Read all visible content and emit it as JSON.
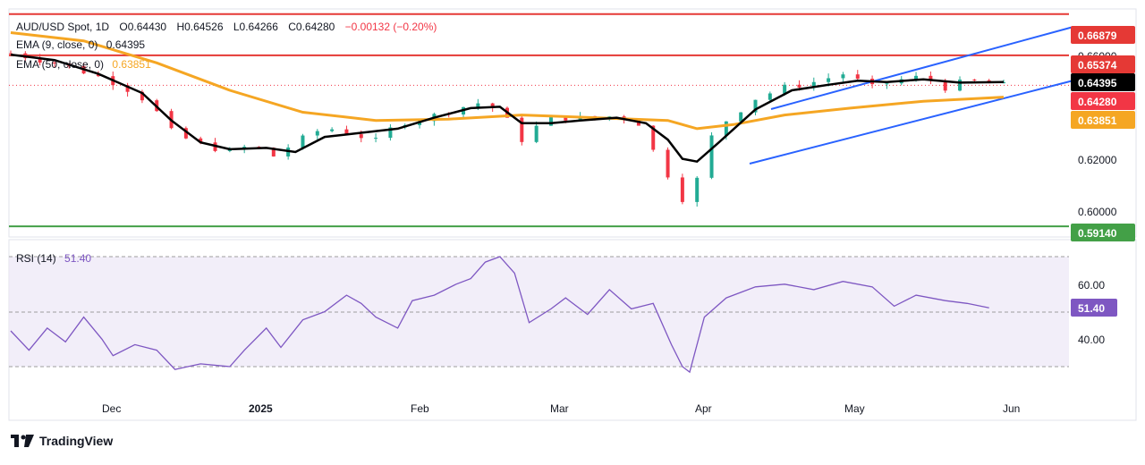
{
  "header": {
    "symbol": "AUD/USD Spot, 1D",
    "open": "O0.64430",
    "high": "H0.64526",
    "low": "L0.64266",
    "close": "C0.64280",
    "change": "−0.00132 (−0.20%)"
  },
  "indicators": {
    "ema9_label": "EMA (9, close, 0)",
    "ema9_value": "0.64395",
    "ema50_label": "EMA (50, close, 0)",
    "ema50_value": "0.63851",
    "rsi_label": "RSI (14)",
    "rsi_value": "51.40"
  },
  "price_tags": {
    "r1": "0.66879",
    "r2": "0.65374",
    "ema9": "0.64395",
    "last": "0.64280",
    "ema50": "0.63851",
    "support": "0.59140"
  },
  "price_ticks": [
    "0.66000",
    "0.62000",
    "0.60000"
  ],
  "rsi_ticks": [
    "60.00",
    "40.00"
  ],
  "rsi_tag": "51.40",
  "x_ticks": [
    "Dec",
    "2025",
    "Feb",
    "Mar",
    "Apr",
    "May",
    "Jun"
  ],
  "branding": "TradingView",
  "colors": {
    "up": "#22ab94",
    "down": "#f23645",
    "ema9": "#000000",
    "ema50": "#f5a623",
    "resistance": "#e53935",
    "support": "#43a047",
    "channel": "#2962ff",
    "rsi": "#7e57c2"
  },
  "chart_data": {
    "type": "candlestick",
    "title": "AUD/USD Spot, 1D",
    "ylim": [
      0.5885,
      0.67
    ],
    "horizontal_levels": [
      0.66879,
      0.65374,
      0.5914
    ],
    "last_price": 0.6428,
    "x_labels": [
      "Dec",
      "2025",
      "Feb",
      "Mar",
      "Apr",
      "May",
      "Jun"
    ],
    "series": [
      {
        "name": "EMA (9, close, 0)",
        "last": 0.64395
      },
      {
        "name": "EMA (50, close, 0)",
        "last": 0.63851
      },
      {
        "name": "RSI (14)",
        "last": 51.4
      }
    ],
    "close_path": [
      [
        0,
        0.6545
      ],
      [
        12,
        0.651
      ],
      [
        22,
        0.647
      ],
      [
        30,
        0.643
      ],
      [
        38,
        0.6365
      ],
      [
        44,
        0.626
      ],
      [
        50,
        0.622
      ],
      [
        60,
        0.6185
      ],
      [
        66,
        0.621
      ],
      [
        72,
        0.617
      ],
      [
        78,
        0.622
      ],
      [
        86,
        0.6275
      ],
      [
        94,
        0.625
      ],
      [
        100,
        0.6225
      ],
      [
        106,
        0.629
      ],
      [
        114,
        0.631
      ],
      [
        124,
        0.635
      ],
      [
        130,
        0.637
      ],
      [
        136,
        0.63
      ],
      [
        140,
        0.623
      ],
      [
        146,
        0.63
      ],
      [
        152,
        0.631
      ],
      [
        160,
        0.6305
      ],
      [
        166,
        0.632
      ],
      [
        172,
        0.629
      ],
      [
        176,
        0.619
      ],
      [
        181,
        0.608
      ],
      [
        184,
        0.6015
      ],
      [
        186,
        0.596
      ],
      [
        190,
        0.621
      ],
      [
        196,
        0.63
      ],
      [
        204,
        0.638
      ],
      [
        212,
        0.642
      ],
      [
        220,
        0.644
      ],
      [
        228,
        0.647
      ],
      [
        236,
        0.642
      ],
      [
        242,
        0.6445
      ],
      [
        250,
        0.646
      ],
      [
        256,
        0.642
      ],
      [
        262,
        0.6445
      ],
      [
        268,
        0.6435
      ],
      [
        272,
        0.6428
      ]
    ],
    "ema9_path": [
      [
        0,
        0.654
      ],
      [
        12,
        0.652
      ],
      [
        24,
        0.647
      ],
      [
        36,
        0.64
      ],
      [
        44,
        0.63
      ],
      [
        52,
        0.622
      ],
      [
        60,
        0.6195
      ],
      [
        70,
        0.62
      ],
      [
        78,
        0.6185
      ],
      [
        86,
        0.624
      ],
      [
        96,
        0.6255
      ],
      [
        106,
        0.627
      ],
      [
        116,
        0.631
      ],
      [
        126,
        0.6345
      ],
      [
        134,
        0.635
      ],
      [
        140,
        0.629
      ],
      [
        148,
        0.629
      ],
      [
        156,
        0.63
      ],
      [
        166,
        0.631
      ],
      [
        174,
        0.629
      ],
      [
        180,
        0.623
      ],
      [
        184,
        0.616
      ],
      [
        188,
        0.615
      ],
      [
        194,
        0.622
      ],
      [
        204,
        0.634
      ],
      [
        214,
        0.641
      ],
      [
        224,
        0.643
      ],
      [
        232,
        0.6445
      ],
      [
        240,
        0.644
      ],
      [
        250,
        0.645
      ],
      [
        260,
        0.6438
      ],
      [
        272,
        0.644
      ]
    ],
    "ema50_path": [
      [
        0,
        0.662
      ],
      [
        20,
        0.659
      ],
      [
        40,
        0.651
      ],
      [
        60,
        0.641
      ],
      [
        80,
        0.633
      ],
      [
        100,
        0.63
      ],
      [
        120,
        0.6305
      ],
      [
        140,
        0.632
      ],
      [
        160,
        0.631
      ],
      [
        180,
        0.63
      ],
      [
        188,
        0.627
      ],
      [
        198,
        0.6285
      ],
      [
        212,
        0.632
      ],
      [
        230,
        0.6345
      ],
      [
        250,
        0.637
      ],
      [
        272,
        0.6385
      ]
    ],
    "rsi_path": [
      [
        0,
        43
      ],
      [
        5,
        36
      ],
      [
        10,
        44
      ],
      [
        15,
        39
      ],
      [
        20,
        48
      ],
      [
        25,
        40
      ],
      [
        28,
        34
      ],
      [
        34,
        38
      ],
      [
        40,
        36
      ],
      [
        45,
        29
      ],
      [
        52,
        31
      ],
      [
        60,
        30
      ],
      [
        64,
        36
      ],
      [
        70,
        44
      ],
      [
        74,
        37
      ],
      [
        80,
        47
      ],
      [
        86,
        50
      ],
      [
        92,
        56
      ],
      [
        96,
        53
      ],
      [
        100,
        48
      ],
      [
        106,
        44
      ],
      [
        110,
        54
      ],
      [
        116,
        56
      ],
      [
        122,
        60
      ],
      [
        126,
        62
      ],
      [
        130,
        68
      ],
      [
        134,
        70
      ],
      [
        138,
        64
      ],
      [
        142,
        46
      ],
      [
        148,
        51
      ],
      [
        152,
        55
      ],
      [
        158,
        49
      ],
      [
        164,
        58
      ],
      [
        170,
        51
      ],
      [
        176,
        53
      ],
      [
        181,
        38
      ],
      [
        184,
        30
      ],
      [
        186,
        28
      ],
      [
        190,
        48
      ],
      [
        196,
        55
      ],
      [
        204,
        59
      ],
      [
        212,
        60
      ],
      [
        220,
        58
      ],
      [
        228,
        61
      ],
      [
        236,
        59
      ],
      [
        242,
        52
      ],
      [
        248,
        56
      ],
      [
        256,
        54
      ],
      [
        262,
        53
      ],
      [
        268,
        51.4
      ]
    ]
  }
}
